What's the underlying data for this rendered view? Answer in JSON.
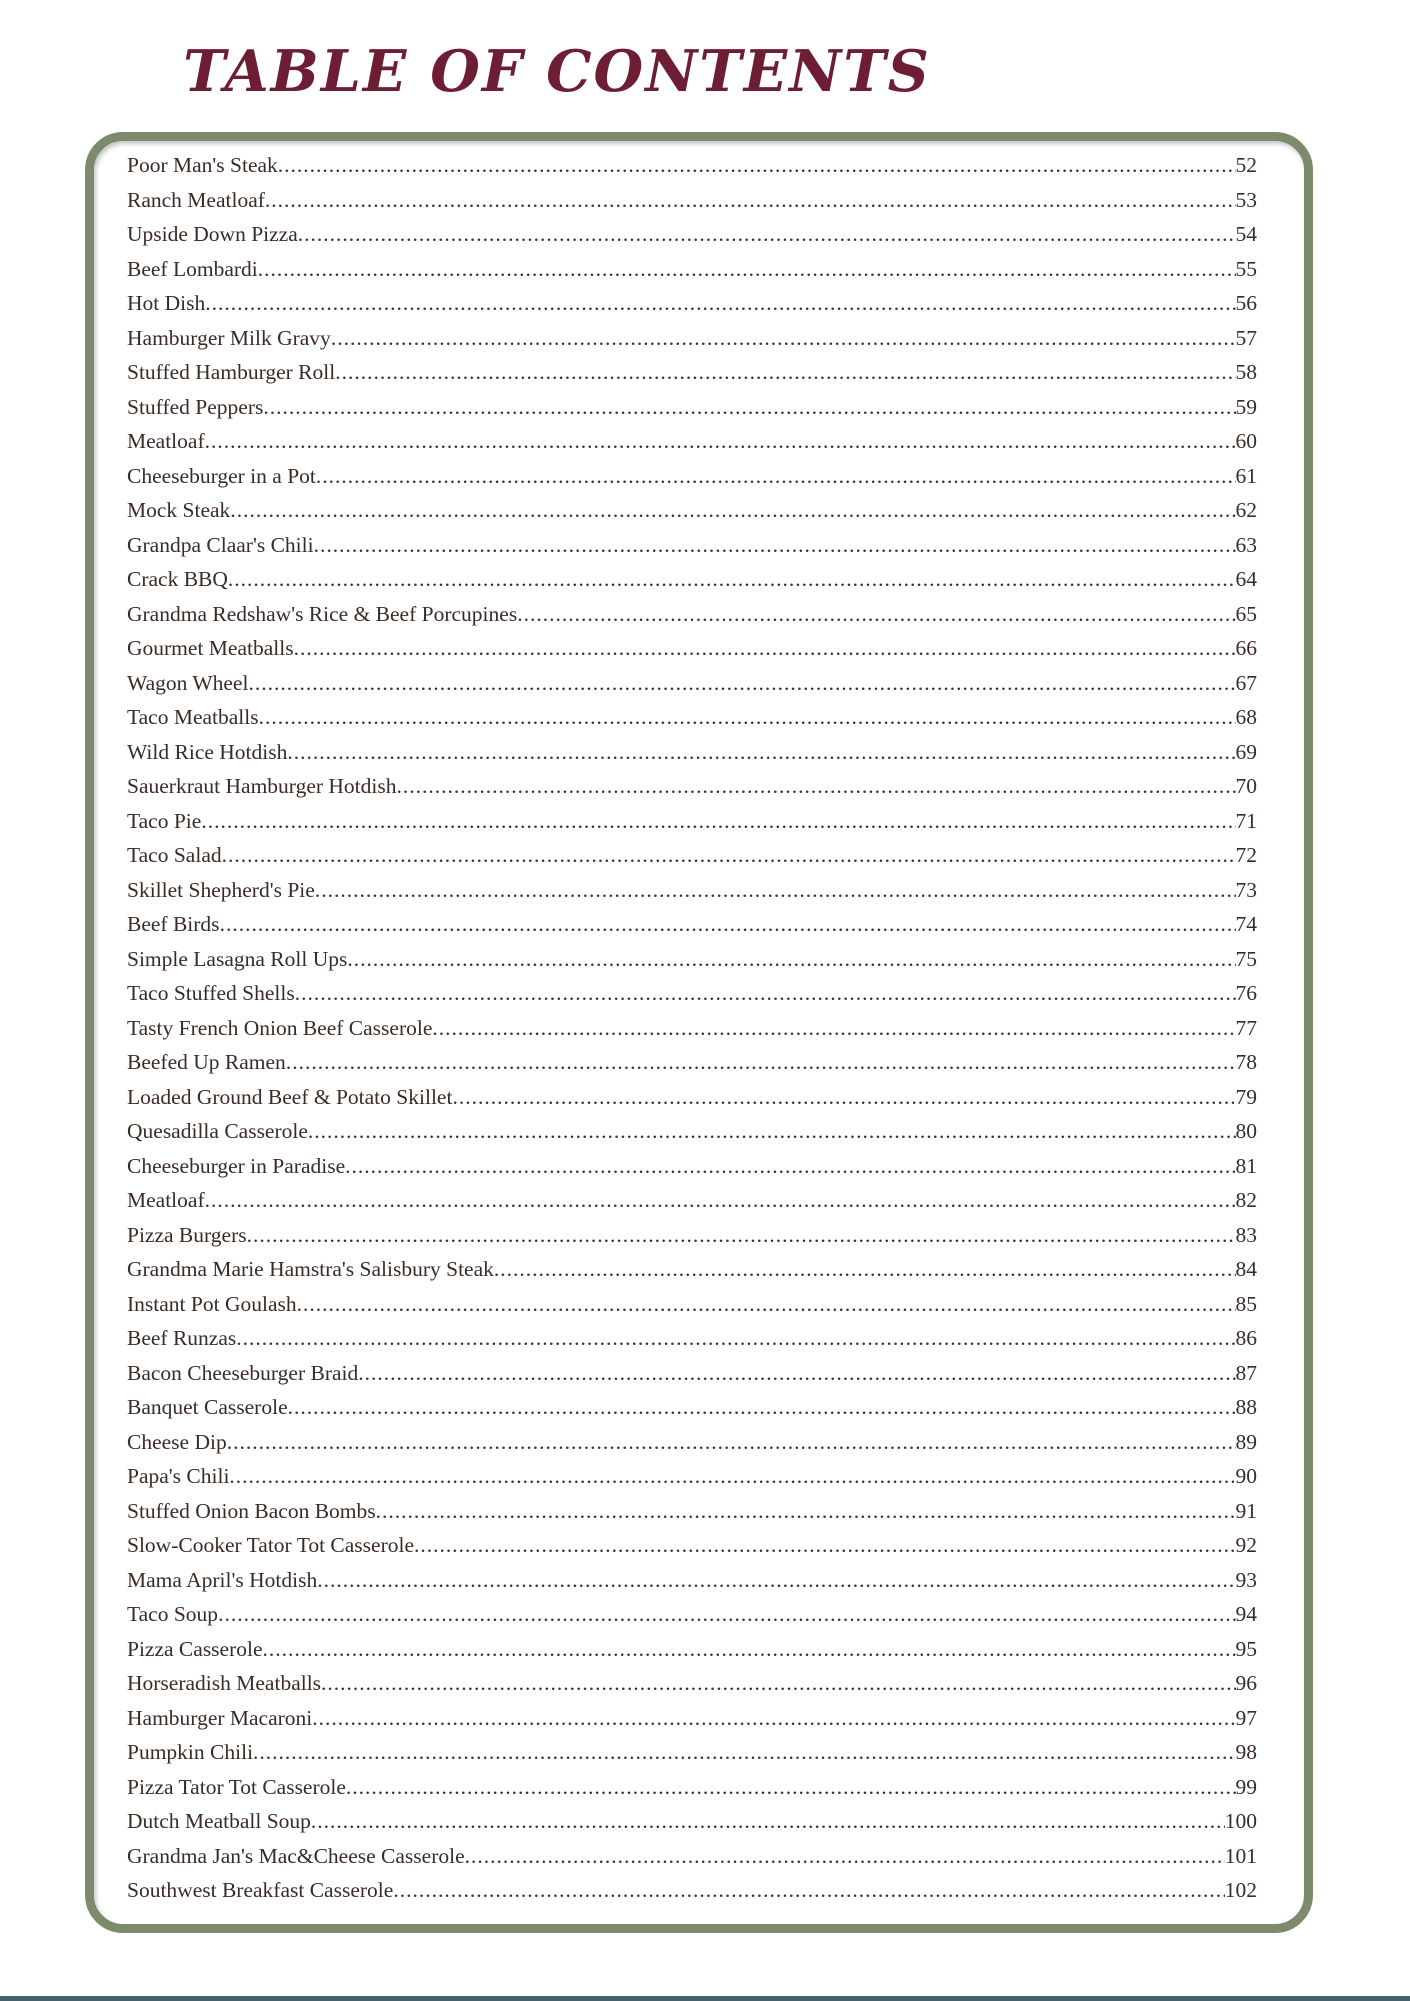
{
  "page_title": "TABLE OF CONTENTS",
  "colors": {
    "title_text": "#6d1e34",
    "body_text": "#3b2b27",
    "card_border": "#7d8b6c",
    "bottom_bar": "#47616c"
  },
  "toc": {
    "entries": [
      {
        "title": "Poor Man's Steak",
        "page": 52
      },
      {
        "title": "Ranch Meatloaf",
        "page": 53
      },
      {
        "title": "Upside Down Pizza",
        "page": 54
      },
      {
        "title": "Beef Lombardi",
        "page": 55
      },
      {
        "title": "Hot Dish",
        "page": 56
      },
      {
        "title": "Hamburger Milk Gravy",
        "page": 57
      },
      {
        "title": "Stuffed Hamburger Roll",
        "page": 58
      },
      {
        "title": "Stuffed Peppers",
        "page": 59
      },
      {
        "title": "Meatloaf",
        "page": 60
      },
      {
        "title": "Cheeseburger in a Pot",
        "page": 61
      },
      {
        "title": "Mock Steak",
        "page": 62
      },
      {
        "title": "Grandpa Claar's Chili",
        "page": 63
      },
      {
        "title": "Crack BBQ",
        "page": 64
      },
      {
        "title": "Grandma Redshaw's Rice & Beef Porcupines",
        "page": 65
      },
      {
        "title": "Gourmet Meatballs",
        "page": 66
      },
      {
        "title": "Wagon Wheel",
        "page": 67
      },
      {
        "title": "Taco Meatballs",
        "page": 68
      },
      {
        "title": "Wild Rice Hotdish",
        "page": 69
      },
      {
        "title": "Sauerkraut Hamburger Hotdish",
        "page": 70
      },
      {
        "title": "Taco Pie",
        "page": 71
      },
      {
        "title": "Taco Salad",
        "page": 72
      },
      {
        "title": "Skillet Shepherd's Pie",
        "page": 73
      },
      {
        "title": "Beef Birds",
        "page": 74
      },
      {
        "title": "Simple Lasagna Roll Ups",
        "page": 75
      },
      {
        "title": "Taco Stuffed Shells",
        "page": 76
      },
      {
        "title": "Tasty French Onion Beef Casserole",
        "page": 77
      },
      {
        "title": "Beefed Up Ramen",
        "page": 78
      },
      {
        "title": "Loaded Ground Beef & Potato Skillet",
        "page": 79
      },
      {
        "title": "Quesadilla Casserole",
        "page": 80
      },
      {
        "title": "Cheeseburger in Paradise",
        "page": 81
      },
      {
        "title": "Meatloaf",
        "page": 82
      },
      {
        "title": "Pizza Burgers",
        "page": 83
      },
      {
        "title": "Grandma Marie Hamstra's Salisbury Steak",
        "page": 84
      },
      {
        "title": "Instant Pot Goulash",
        "page": 85
      },
      {
        "title": "Beef Runzas",
        "page": 86
      },
      {
        "title": "Bacon Cheeseburger Braid",
        "page": 87
      },
      {
        "title": "Banquet Casserole",
        "page": 88
      },
      {
        "title": "Cheese Dip",
        "page": 89
      },
      {
        "title": "Papa's Chili",
        "page": 90
      },
      {
        "title": "Stuffed Onion Bacon Bombs",
        "page": 91
      },
      {
        "title": "Slow-Cooker Tator Tot Casserole",
        "page": 92
      },
      {
        "title": "Mama April's Hotdish",
        "page": 93
      },
      {
        "title": "Taco Soup",
        "page": 94
      },
      {
        "title": "Pizza Casserole",
        "page": 95
      },
      {
        "title": "Horseradish Meatballs",
        "page": 96
      },
      {
        "title": "Hamburger Macaroni",
        "page": 97
      },
      {
        "title": "Pumpkin Chili",
        "page": 98
      },
      {
        "title": "Pizza Tator Tot Casserole",
        "page": 99
      },
      {
        "title": "Dutch Meatball Soup",
        "page": 100
      },
      {
        "title": "Grandma Jan's Mac&Cheese Casserole",
        "page": 101
      },
      {
        "title": "Southwest Breakfast Casserole",
        "page": 102
      }
    ]
  }
}
